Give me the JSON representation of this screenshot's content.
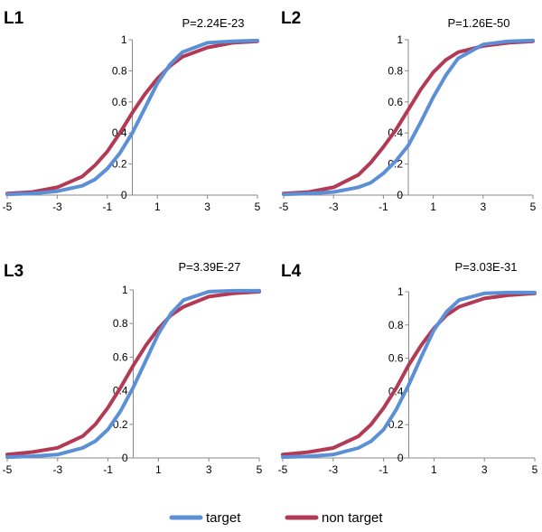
{
  "colors": {
    "target": "#5b8fd6",
    "non_target": "#b23a55",
    "axis": "#888888"
  },
  "legend": {
    "items": [
      {
        "key": "target",
        "label": "target"
      },
      {
        "key": "non_target",
        "label": "non target"
      }
    ]
  },
  "chart_data": [
    {
      "type": "line",
      "title": "L1",
      "annotation": "P=2.24E-23",
      "xlim": [
        -5,
        5
      ],
      "ylim": [
        0,
        1
      ],
      "xticks": [
        -5,
        -3,
        -1,
        1,
        3,
        5
      ],
      "yticks": [
        0,
        0.2,
        0.4,
        0.6,
        0.8,
        1
      ],
      "ytick_labels": [
        "0",
        "0.2",
        "0.4",
        "0.6",
        "0.8",
        "1"
      ],
      "x": [
        -5,
        -4,
        -3,
        -2,
        -1.5,
        -1,
        -0.5,
        0,
        0.5,
        1,
        1.5,
        2,
        3,
        4,
        5
      ],
      "series": [
        {
          "key": "target",
          "name": "target",
          "values": [
            0.005,
            0.01,
            0.025,
            0.06,
            0.1,
            0.17,
            0.27,
            0.4,
            0.56,
            0.72,
            0.84,
            0.92,
            0.98,
            0.99,
            0.995
          ]
        },
        {
          "key": "non_target",
          "name": "non target",
          "values": [
            0.01,
            0.02,
            0.05,
            0.12,
            0.19,
            0.28,
            0.4,
            0.53,
            0.65,
            0.75,
            0.83,
            0.89,
            0.95,
            0.98,
            0.99
          ]
        }
      ]
    },
    {
      "type": "line",
      "title": "L2",
      "annotation": "P=1.26E-50",
      "xlim": [
        -5,
        5
      ],
      "ylim": [
        0,
        1
      ],
      "xticks": [
        -5,
        -3,
        -1,
        1,
        3,
        5
      ],
      "yticks": [
        0,
        0.2,
        0.4,
        0.6,
        0.8,
        1
      ],
      "ytick_labels": [
        "0",
        "0.2",
        "0.4",
        "0.6",
        "0.8",
        "1"
      ],
      "x": [
        -5,
        -4,
        -3,
        -2,
        -1.5,
        -1,
        -0.5,
        0,
        0.5,
        1,
        1.5,
        2,
        3,
        4,
        5
      ],
      "series": [
        {
          "key": "target",
          "name": "target",
          "values": [
            0.005,
            0.01,
            0.02,
            0.05,
            0.08,
            0.14,
            0.22,
            0.32,
            0.47,
            0.63,
            0.77,
            0.88,
            0.97,
            0.99,
            0.995
          ]
        },
        {
          "key": "non_target",
          "name": "non target",
          "values": [
            0.01,
            0.02,
            0.05,
            0.13,
            0.21,
            0.31,
            0.42,
            0.55,
            0.68,
            0.79,
            0.87,
            0.92,
            0.96,
            0.98,
            0.99
          ]
        }
      ]
    },
    {
      "type": "line",
      "title": "L3",
      "annotation": "P=3.39E-27",
      "xlim": [
        -5,
        5
      ],
      "ylim": [
        0,
        1
      ],
      "xticks": [
        -5,
        -3,
        -1,
        1,
        3,
        5
      ],
      "yticks": [
        0,
        0.2,
        0.4,
        0.6,
        0.8,
        1
      ],
      "ytick_labels": [
        "0",
        "0.2",
        "0.4",
        "0.6",
        "0.8",
        "1"
      ],
      "x": [
        -5,
        -4,
        -3,
        -2,
        -1.5,
        -1,
        -0.5,
        0,
        0.5,
        1,
        1.5,
        2,
        3,
        4,
        5
      ],
      "series": [
        {
          "key": "target",
          "name": "target",
          "values": [
            0.005,
            0.01,
            0.02,
            0.06,
            0.1,
            0.17,
            0.28,
            0.42,
            0.58,
            0.74,
            0.86,
            0.94,
            0.99,
            0.995,
            0.995
          ]
        },
        {
          "key": "non_target",
          "name": "non target",
          "values": [
            0.02,
            0.035,
            0.06,
            0.13,
            0.2,
            0.3,
            0.42,
            0.55,
            0.67,
            0.77,
            0.85,
            0.9,
            0.96,
            0.98,
            0.99
          ]
        }
      ]
    },
    {
      "type": "line",
      "title": "L4",
      "annotation": "P=3.03E-31",
      "xlim": [
        -5,
        5
      ],
      "ylim": [
        0,
        1
      ],
      "xticks": [
        -5,
        -3,
        -1,
        1,
        3,
        5
      ],
      "yticks": [
        0,
        0.2,
        0.4,
        0.6,
        0.8,
        1
      ],
      "ytick_labels": [
        "0",
        "0.2",
        "0.4",
        "0.6",
        "0.8",
        "1"
      ],
      "x": [
        -5,
        -4,
        -3,
        -2,
        -1.5,
        -1,
        -0.5,
        0,
        0.5,
        1,
        1.5,
        2,
        3,
        4,
        5
      ],
      "series": [
        {
          "key": "target",
          "name": "target",
          "values": [
            0.005,
            0.01,
            0.02,
            0.06,
            0.1,
            0.17,
            0.29,
            0.44,
            0.61,
            0.77,
            0.88,
            0.95,
            0.99,
            0.995,
            0.995
          ]
        },
        {
          "key": "non_target",
          "name": "non target",
          "values": [
            0.02,
            0.035,
            0.06,
            0.13,
            0.2,
            0.3,
            0.42,
            0.56,
            0.68,
            0.78,
            0.86,
            0.91,
            0.96,
            0.98,
            0.99
          ]
        }
      ]
    }
  ]
}
